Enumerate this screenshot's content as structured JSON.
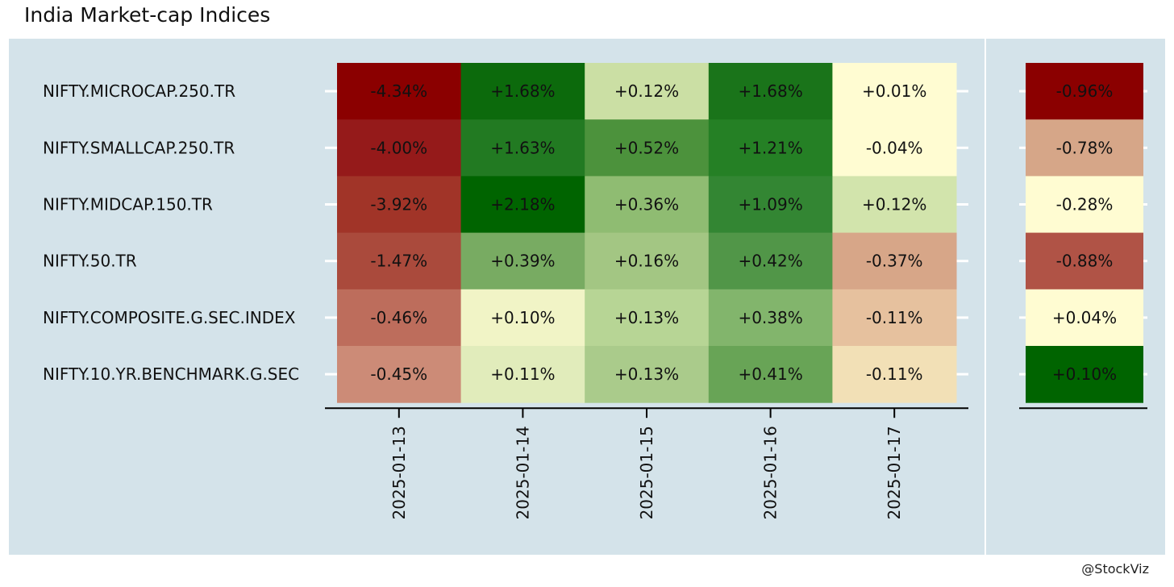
{
  "title": "India Market-cap Indices",
  "credit": "@StockViz",
  "chart_data": [
    {
      "type": "heatmap",
      "title": "India Market-cap Indices",
      "rows": [
        "NIFTY.MICROCAP.250.TR",
        "NIFTY.SMALLCAP.250.TR",
        "NIFTY.MIDCAP.150.TR",
        "NIFTY.50.TR",
        "NIFTY.COMPOSITE.G.SEC.INDEX",
        "NIFTY.10.YR.BENCHMARK.G.SEC"
      ],
      "columns": [
        "2025-01-13",
        "2025-01-14",
        "2025-01-15",
        "2025-01-16",
        "2025-01-17"
      ],
      "values": [
        [
          -4.34,
          1.68,
          0.12,
          1.68,
          0.01
        ],
        [
          -4.0,
          1.63,
          0.52,
          1.21,
          -0.04
        ],
        [
          -3.92,
          2.18,
          0.36,
          1.09,
          0.12
        ],
        [
          -1.47,
          0.39,
          0.16,
          0.42,
          -0.37
        ],
        [
          -0.46,
          0.1,
          0.13,
          0.38,
          -0.11
        ],
        [
          -0.45,
          0.11,
          0.13,
          0.41,
          -0.11
        ]
      ],
      "labels": [
        [
          "-4.34%",
          "+1.68%",
          "+0.12%",
          "+1.68%",
          "+0.01%"
        ],
        [
          "-4.00%",
          "+1.63%",
          "+0.52%",
          "+1.21%",
          "-0.04%"
        ],
        [
          "-3.92%",
          "+2.18%",
          "+0.36%",
          "+1.09%",
          "+0.12%"
        ],
        [
          "-1.47%",
          "+0.39%",
          "+0.16%",
          "+0.42%",
          "-0.37%"
        ],
        [
          "-0.46%",
          "+0.10%",
          "+0.13%",
          "+0.38%",
          "-0.11%"
        ],
        [
          "-0.45%",
          "+0.11%",
          "+0.13%",
          "+0.41%",
          "-0.11%"
        ]
      ],
      "colors": [
        [
          "#8b0000",
          "#0c6a0c",
          "#cbdfa4",
          "#1a741a",
          "#fffcd2"
        ],
        [
          "#951a1a",
          "#227a22",
          "#4c923c",
          "#258025",
          "#fffcd2"
        ],
        [
          "#a13428",
          "#006400",
          "#8fbc72",
          "#338633",
          "#d2e4ac"
        ],
        [
          "#aa4a3c",
          "#78ab62",
          "#a3c683",
          "#519648",
          "#d7a688"
        ],
        [
          "#bd6d5c",
          "#f1f4c6",
          "#b7d595",
          "#82b56c",
          "#e6c19e"
        ],
        [
          "#cc8b77",
          "#e1ecbb",
          "#aacb8b",
          "#68a456",
          "#f2e0b6"
        ]
      ]
    },
    {
      "type": "heatmap",
      "rows": [
        "NIFTY.MICROCAP.250.TR",
        "NIFTY.SMALLCAP.250.TR",
        "NIFTY.MIDCAP.150.TR",
        "NIFTY.50.TR",
        "NIFTY.COMPOSITE.G.SEC.INDEX",
        "NIFTY.10.YR.BENCHMARK.G.SEC"
      ],
      "values": [
        -0.96,
        -0.78,
        -0.28,
        -0.88,
        0.04,
        0.1
      ],
      "labels": [
        "-0.96%",
        "-0.78%",
        "-0.28%",
        "-0.88%",
        "+0.04%",
        "+0.10%"
      ],
      "colors": [
        "#8b0000",
        "#d6a688",
        "#fffcd2",
        "#b05346",
        "#fffcd2",
        "#006400"
      ]
    }
  ]
}
